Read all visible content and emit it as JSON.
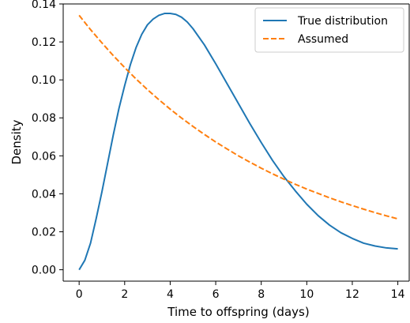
{
  "chart_data": {
    "type": "line",
    "title": "",
    "xlabel": "Time to offspring (days)",
    "ylabel": "Density",
    "xlim": [
      -0.7,
      14.5
    ],
    "ylim": [
      -0.006,
      0.14
    ],
    "xticks": [
      0,
      2,
      4,
      6,
      8,
      10,
      12,
      14
    ],
    "xtick_labels": [
      "0",
      "2",
      "4",
      "6",
      "8",
      "10",
      "12",
      "14"
    ],
    "yticks": [
      0.0,
      0.02,
      0.04,
      0.06,
      0.08,
      0.1,
      0.12,
      0.14
    ],
    "ytick_labels": [
      "0.00",
      "0.02",
      "0.04",
      "0.06",
      "0.08",
      "0.10",
      "0.12",
      "0.14"
    ],
    "grid": false,
    "legend_position": "top-right",
    "series": [
      {
        "name": "True distribution",
        "color": "#1f77b4",
        "style": "solid",
        "x": [
          0,
          0.25,
          0.5,
          0.75,
          1,
          1.25,
          1.5,
          1.75,
          2,
          2.25,
          2.5,
          2.75,
          3,
          3.25,
          3.5,
          3.75,
          4,
          4.25,
          4.5,
          4.75,
          5,
          5.5,
          6,
          6.5,
          7,
          7.5,
          8,
          8.5,
          9,
          9.5,
          10,
          10.5,
          11,
          11.5,
          12,
          12.5,
          13,
          13.5,
          14
        ],
        "y": [
          0.0,
          0.005,
          0.014,
          0.027,
          0.041,
          0.056,
          0.071,
          0.085,
          0.097,
          0.108,
          0.117,
          0.124,
          0.129,
          0.132,
          0.134,
          0.135,
          0.135,
          0.1345,
          0.133,
          0.1305,
          0.127,
          0.1185,
          0.1085,
          0.098,
          0.0875,
          0.077,
          0.067,
          0.0575,
          0.049,
          0.0415,
          0.0345,
          0.0285,
          0.0235,
          0.0195,
          0.0165,
          0.014,
          0.0125,
          0.0115,
          0.011
        ]
      },
      {
        "name": "Assumed",
        "color": "#ff7f0e",
        "style": "dashed",
        "x": [
          0,
          0.5,
          1,
          1.5,
          2,
          2.5,
          3,
          3.5,
          4,
          4.5,
          5,
          5.5,
          6,
          6.5,
          7,
          7.5,
          8,
          8.5,
          9,
          9.5,
          10,
          10.5,
          11,
          11.5,
          12,
          12.5,
          13,
          13.5,
          14
        ],
        "y": [
          0.134,
          0.1265,
          0.1195,
          0.1128,
          0.1065,
          0.1005,
          0.0949,
          0.0896,
          0.0846,
          0.0799,
          0.0755,
          0.0713,
          0.0673,
          0.0636,
          0.06,
          0.0567,
          0.0535,
          0.0505,
          0.0477,
          0.045,
          0.0425,
          0.0402,
          0.0379,
          0.0358,
          0.0338,
          0.0319,
          0.0301,
          0.0284,
          0.0268
        ]
      }
    ]
  }
}
